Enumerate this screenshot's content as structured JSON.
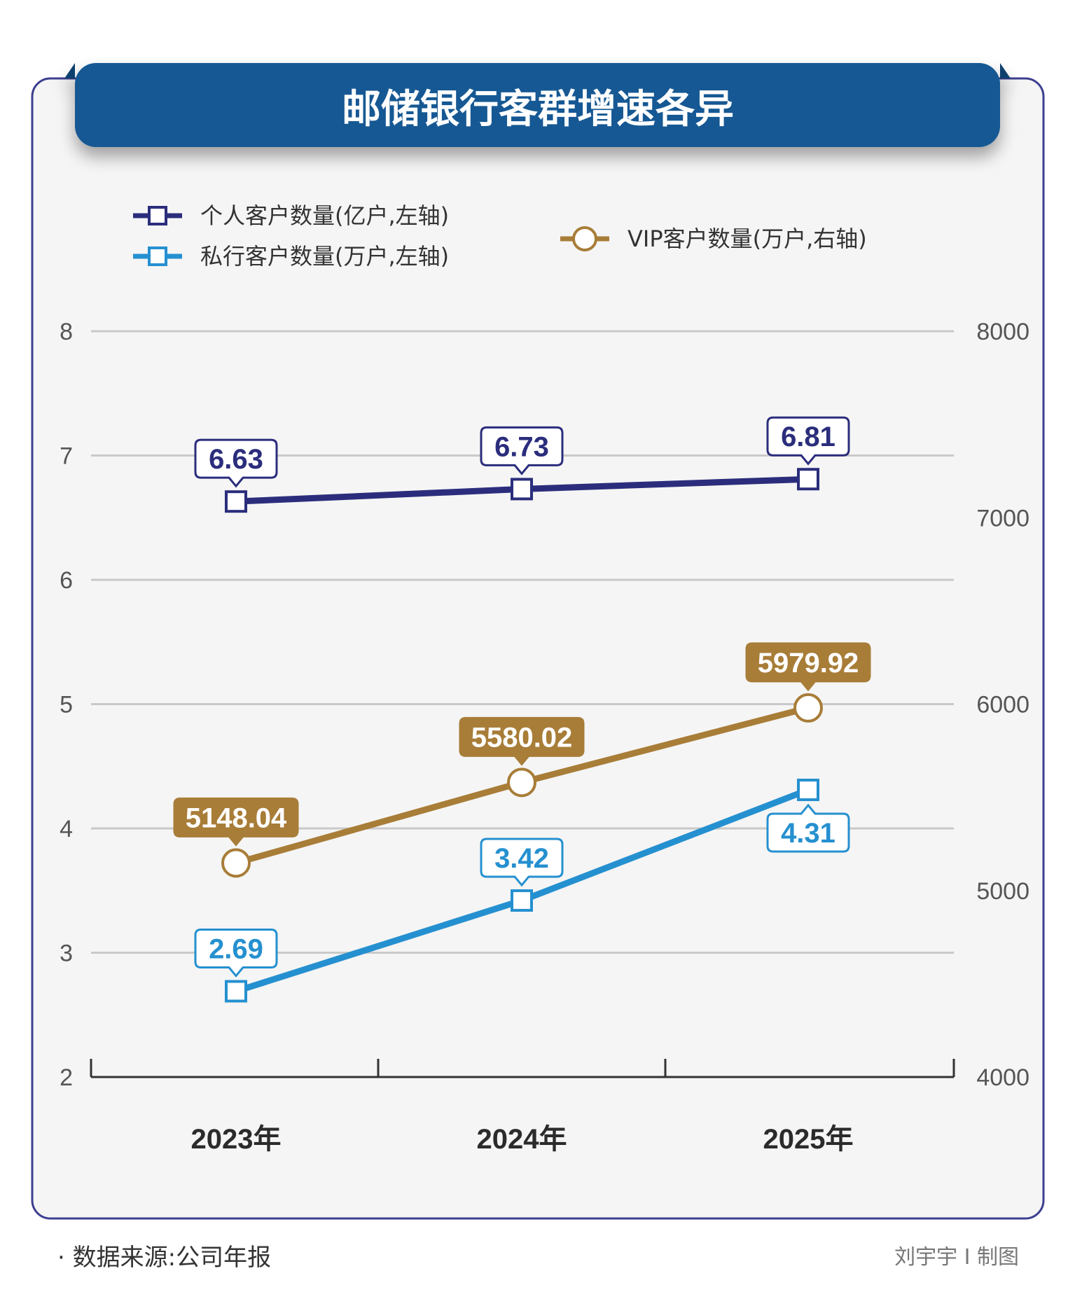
{
  "title": "邮储银行客群增速各异",
  "chart_data": {
    "type": "line",
    "categories": [
      "2023年",
      "2024年",
      "2025年"
    ],
    "y_left": {
      "ticks": [
        "2",
        "3",
        "4",
        "5",
        "6",
        "7",
        "8"
      ],
      "range": [
        2,
        8
      ]
    },
    "y_right": {
      "ticks": [
        "4000",
        "5000",
        "6000",
        "7000",
        "8000"
      ],
      "range": [
        4000,
        8000
      ]
    },
    "grid": true,
    "legend_position": "top",
    "series": [
      {
        "name": "个人客户数量(亿户,左轴)",
        "axis": "left",
        "marker": "square",
        "color": "#2b2d7c",
        "values": [
          6.63,
          6.73,
          6.81
        ],
        "labels": [
          "6.63",
          "6.73",
          "6.81"
        ]
      },
      {
        "name": "私行客户数量(万户,左轴)",
        "axis": "left",
        "marker": "square",
        "color": "#2590d0",
        "values": [
          2.69,
          3.42,
          4.31
        ],
        "labels": [
          "2.69",
          "3.42",
          "4.31"
        ]
      },
      {
        "name": "VIP客户数量(万户,右轴)",
        "axis": "right",
        "marker": "circle",
        "color": "#a87d38",
        "values": [
          5148.04,
          5580.02,
          5979.92
        ],
        "labels": [
          "5148.04",
          "5580.02",
          "5979.92"
        ]
      }
    ]
  },
  "footer": {
    "source": "· 数据来源:公司年报",
    "credit": "刘宇宇 I 制图"
  },
  "colors": {
    "title_bg": "#175893",
    "panel_border": "#3d3f8f",
    "panel_bg": "#f5f5f5",
    "grid": "#c9c9c9"
  }
}
